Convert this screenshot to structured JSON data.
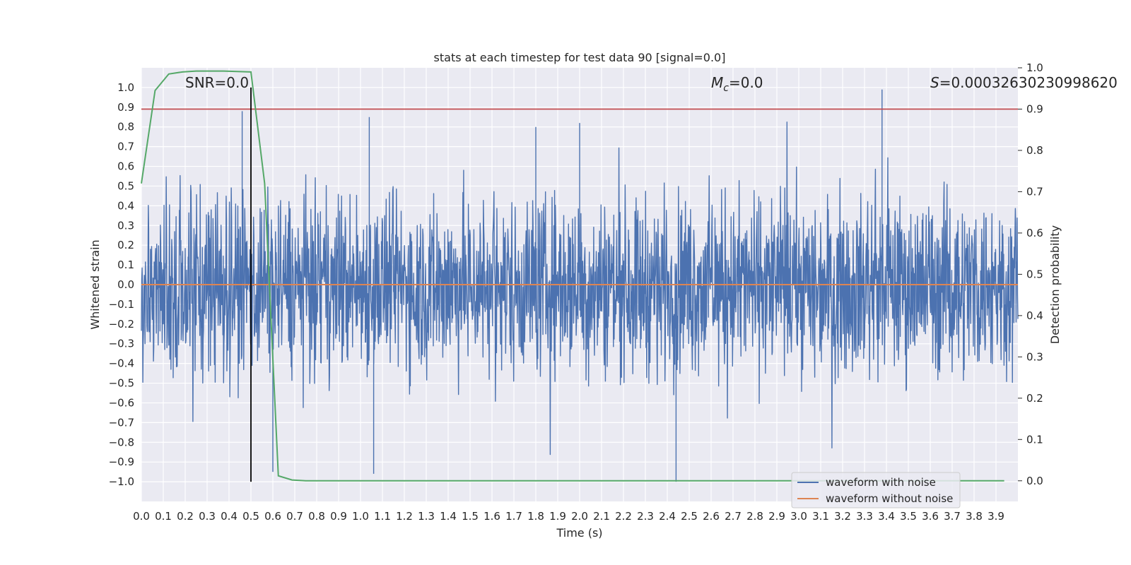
{
  "chart_data": {
    "type": "line",
    "title": "stats at each timestep for test data 90 [signal=0.0]",
    "xlabel": "Time (s)",
    "ylabel": "Whitened strain",
    "ylabel_right": "Detection probability",
    "xlim": [
      0.0,
      4.0
    ],
    "ylim": [
      -1.1,
      1.1
    ],
    "ylim_right": [
      -0.05,
      1.0
    ],
    "x_ticks": [
      "0.0",
      "0.1",
      "0.2",
      "0.3",
      "0.4",
      "0.5",
      "0.6",
      "0.7",
      "0.8",
      "0.9",
      "1.0",
      "1.1",
      "1.2",
      "1.3",
      "1.4",
      "1.5",
      "1.6",
      "1.7",
      "1.8",
      "1.9",
      "2.0",
      "2.1",
      "2.2",
      "2.3",
      "2.4",
      "2.5",
      "2.6",
      "2.7",
      "2.8",
      "2.9",
      "3.0",
      "3.1",
      "3.2",
      "3.3",
      "3.4",
      "3.5",
      "3.6",
      "3.7",
      "3.8",
      "3.9"
    ],
    "y_ticks": [
      "1.0",
      "0.9",
      "0.8",
      "0.7",
      "0.6",
      "0.5",
      "0.4",
      "0.3",
      "0.2",
      "0.1",
      "0.0",
      "−0.1",
      "−0.2",
      "−0.3",
      "−0.4",
      "−0.5",
      "−0.6",
      "−0.7",
      "−0.8",
      "−0.9",
      "−1.0"
    ],
    "y_right_ticks": [
      "1.0",
      "0.9",
      "0.8",
      "0.7",
      "0.6",
      "0.5",
      "0.4",
      "0.3",
      "0.2",
      "0.1",
      "0.0"
    ],
    "annotations": {
      "snr": "SNR=0.0",
      "mc_symbol": "M",
      "mc_sub": "c",
      "mc_value": "=0.0",
      "s_symbol": "S",
      "s_value": "=0.00032630230998620"
    },
    "legend": {
      "position": "lower-right",
      "entries": [
        {
          "label": "waveform with noise",
          "color": "#4c72b0"
        },
        {
          "label": "waveform without noise",
          "color": "#dd8452"
        }
      ]
    },
    "series": [
      {
        "name": "waveform with noise",
        "color": "#4c72b0",
        "kind": "noise",
        "x_range": [
          0.0,
          4.0
        ],
        "amplitude_typical": 0.35,
        "peak_values": [
          0.88,
          0.85,
          0.82,
          0.8,
          0.99,
          -0.96,
          -0.95,
          -1.0
        ]
      },
      {
        "name": "waveform without noise",
        "color": "#dd8452",
        "x": [
          0.0,
          4.0
        ],
        "y": [
          0.0,
          0.0
        ]
      },
      {
        "name": "detection probability",
        "color": "#55a868",
        "axis": "right",
        "x": [
          0.0,
          0.0625,
          0.125,
          0.1875,
          0.25,
          0.3125,
          0.375,
          0.4375,
          0.5,
          0.5625,
          0.625,
          0.6875,
          0.75,
          1.0,
          2.0,
          3.0,
          3.9375
        ],
        "y": [
          0.72,
          0.945,
          0.985,
          0.99,
          0.992,
          0.992,
          0.992,
          0.991,
          0.99,
          0.72,
          0.012,
          0.002,
          0.0,
          0.0,
          0.0,
          0.0,
          0.0
        ]
      },
      {
        "name": "threshold",
        "color": "#c44e52",
        "axis": "right",
        "kind": "hline",
        "y": 0.9
      },
      {
        "name": "signal marker",
        "color": "#000000",
        "kind": "vline",
        "x": 0.5,
        "y_range": [
          -1.0,
          1.0
        ]
      }
    ]
  }
}
